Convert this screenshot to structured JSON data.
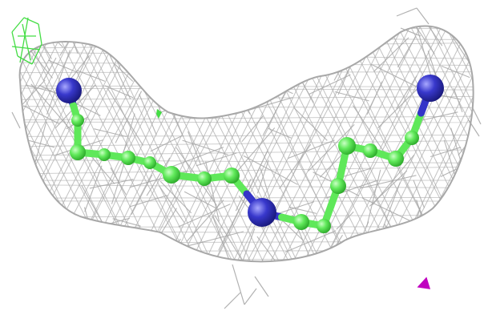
{
  "scene": {
    "subject": "electron-density-mesh-with-ball-and-stick-molecule",
    "background_color": "#ffffff",
    "mesh_color": "#a8a8a8",
    "carbon_color": "#5fe85a",
    "nitrogen_color": "#3434c8",
    "side_fragment_color": "#44dd44",
    "marker_color": "#c000c0",
    "atoms": [
      {
        "element": "N"
      },
      {
        "element": "C"
      },
      {
        "element": "C"
      },
      {
        "element": "C"
      },
      {
        "element": "C"
      },
      {
        "element": "C"
      },
      {
        "element": "C"
      },
      {
        "element": "C"
      },
      {
        "element": "C"
      },
      {
        "element": "N"
      },
      {
        "element": "C"
      },
      {
        "element": "C"
      },
      {
        "element": "C"
      },
      {
        "element": "C"
      },
      {
        "element": "C"
      },
      {
        "element": "C"
      },
      {
        "element": "C"
      },
      {
        "element": "N"
      }
    ]
  }
}
